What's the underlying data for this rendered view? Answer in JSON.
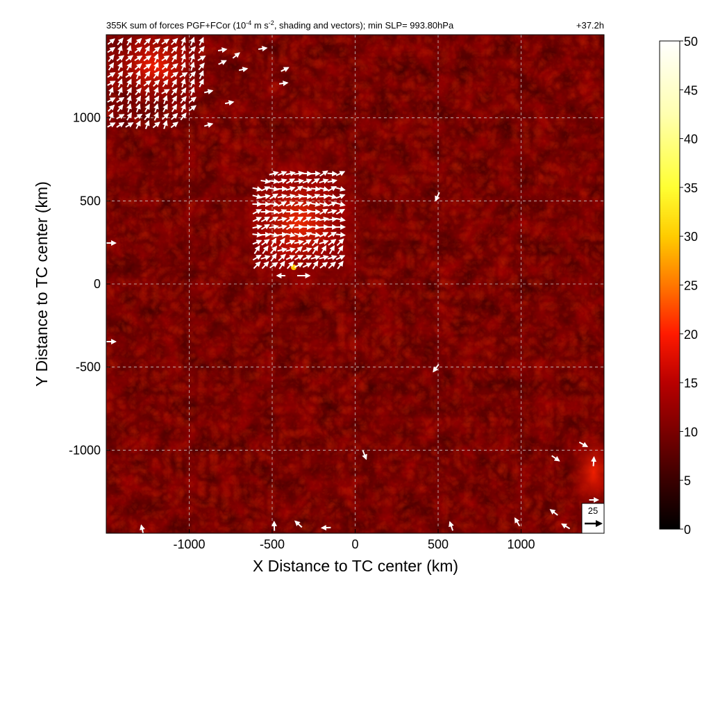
{
  "title": "355K sum of forces PGF+FCor (10",
  "title_exp1": "-4",
  "title_mid": " m s",
  "title_exp2": "-2",
  "title_end": ", shading and vectors); min SLP= 993.80hPa",
  "time_label": "+37.2h",
  "chart_data": {
    "type": "heatmap",
    "title": "355K sum of forces PGF+FCor (10^-4 m s^-2, shading and vectors); min SLP= 993.80hPa",
    "xlabel": "X Distance to TC center (km)",
    "ylabel": "Y Distance to TC center (km)",
    "xlim": [
      -1500,
      1500
    ],
    "ylim": [
      -1500,
      1500
    ],
    "xticks": [
      -1000,
      -500,
      0,
      500,
      1000
    ],
    "yticks": [
      -1000,
      -500,
      0,
      500,
      1000
    ],
    "grid": true,
    "colorbar": {
      "min": 0,
      "max": 50,
      "ticks": [
        0,
        5,
        10,
        15,
        20,
        25,
        30,
        35,
        40,
        45,
        50
      ],
      "colormap": [
        "#000000",
        "#3a0000",
        "#7a0000",
        "#b80000",
        "#ff1a00",
        "#ff7700",
        "#ffcc00",
        "#ffff33",
        "#ffffb0",
        "#ffffff"
      ]
    },
    "reference_vector": {
      "label": "25",
      "value": 25
    }
  }
}
